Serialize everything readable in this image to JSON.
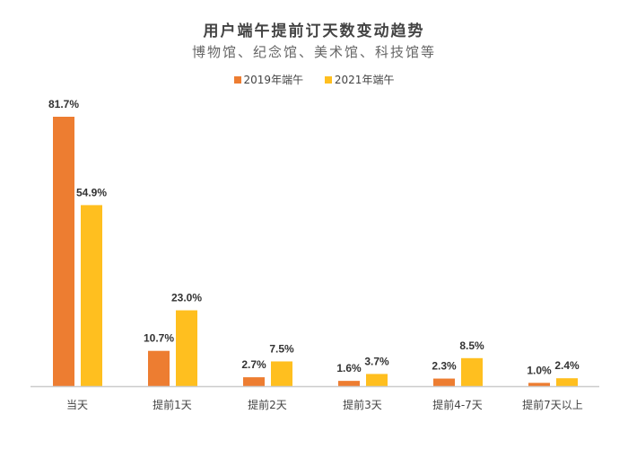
{
  "chart_data": {
    "type": "bar",
    "title": "用户端午提前订天数变动趋势",
    "subtitle": "博物馆、纪念馆、美术馆、科技馆等",
    "categories": [
      "当天",
      "提前1天",
      "提前2天",
      "提前3天",
      "提前4-7天",
      "提前7天以上"
    ],
    "series": [
      {
        "name": "2019年端午",
        "values": [
          81.7,
          10.7,
          2.7,
          1.6,
          2.3,
          1.0
        ],
        "labels": [
          "81.7%",
          "10.7%",
          "2.7%",
          "1.6%",
          "2.3%",
          "1.0%"
        ],
        "color": "#ED7D31"
      },
      {
        "name": "2021年端午",
        "values": [
          54.9,
          23.0,
          7.5,
          3.7,
          8.5,
          2.4
        ],
        "labels": [
          "54.9%",
          "23.0%",
          "7.5%",
          "3.7%",
          "8.5%",
          "2.4%"
        ],
        "color": "#FFBF1F"
      }
    ],
    "unit": "%",
    "ylim": [
      0,
      81.7
    ],
    "grid": false,
    "legend": "top"
  }
}
